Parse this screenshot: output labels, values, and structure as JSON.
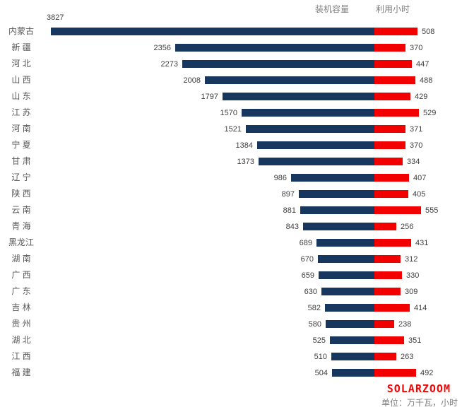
{
  "chart_data": {
    "type": "bar",
    "subtype": "diverging-horizontal",
    "title": "",
    "categories": [
      "内蒙古",
      "新 疆",
      "河 北",
      "山 西",
      "山 东",
      "江 苏",
      "河 南",
      "宁 夏",
      "甘 肃",
      "辽 宁",
      "陕 西",
      "云 南",
      "青 海",
      "黑龙江",
      "湖 南",
      "广 西",
      "广 东",
      "吉 林",
      "贵 州",
      "湖 北",
      "江 西",
      "福 建"
    ],
    "series": [
      {
        "name": "装机容量",
        "direction": "left",
        "color": "#17375E",
        "values": [
          3827,
          2356,
          2273,
          2008,
          1797,
          1570,
          1521,
          1384,
          1373,
          986,
          897,
          881,
          843,
          689,
          670,
          659,
          630,
          582,
          580,
          525,
          510,
          504
        ]
      },
      {
        "name": "利用小时",
        "direction": "right",
        "color": "#F20000",
        "values": [
          508,
          370,
          447,
          488,
          429,
          529,
          371,
          370,
          334,
          407,
          405,
          555,
          256,
          431,
          312,
          330,
          309,
          414,
          238,
          351,
          263,
          492
        ]
      }
    ],
    "value_labels_shown": true,
    "xlabel": "",
    "ylabel": "",
    "axis_range_per_side": [
      0,
      3925
    ],
    "grid": false,
    "legend_position": "top-center"
  },
  "footer": {
    "watermark": "SOLARZOOM",
    "unit_note": "单位：万千瓦，小时"
  },
  "colors": {
    "capacity_bar": "#17375E",
    "hours_bar": "#F20000",
    "watermark_red": "#FF0000",
    "label_gray": "#595959",
    "value_text": "#404040"
  }
}
